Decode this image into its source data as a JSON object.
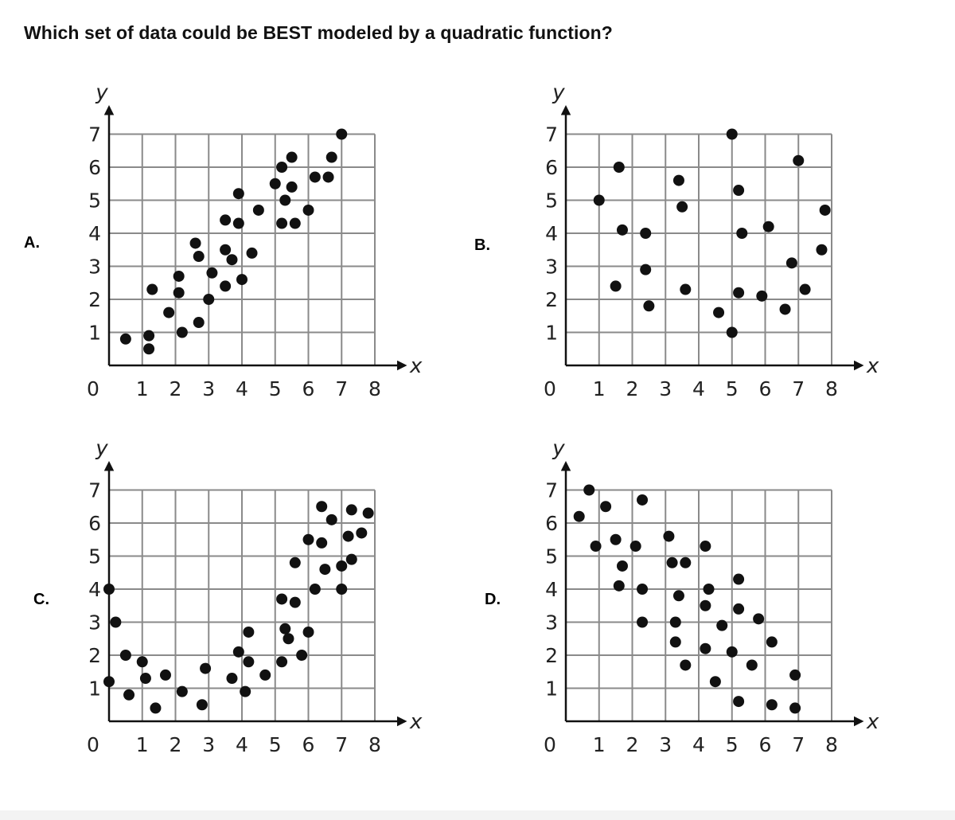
{
  "question": "Which set of data could be BEST modeled by a quadratic function?",
  "colors": {
    "point": "#111111",
    "grid": "#8a8a8a",
    "axis": "#111111"
  },
  "chart_data": [
    {
      "type": "scatter",
      "label": "A.",
      "xlabel": "x",
      "ylabel": "y",
      "xlim": [
        0,
        8
      ],
      "ylim": [
        0,
        7
      ],
      "grid": true,
      "xticks": [
        "0",
        "1",
        "2",
        "3",
        "4",
        "5",
        "6",
        "7",
        "8"
      ],
      "yticks": [
        "1",
        "2",
        "3",
        "4",
        "5",
        "6",
        "7"
      ],
      "points": [
        [
          0.5,
          0.8
        ],
        [
          1.2,
          0.9
        ],
        [
          1.2,
          0.5
        ],
        [
          1.3,
          2.3
        ],
        [
          1.8,
          1.6
        ],
        [
          2.1,
          2.7
        ],
        [
          2.1,
          2.2
        ],
        [
          2.2,
          1.0
        ],
        [
          2.6,
          3.7
        ],
        [
          2.7,
          3.3
        ],
        [
          2.7,
          1.3
        ],
        [
          3.0,
          2.0
        ],
        [
          3.1,
          2.8
        ],
        [
          3.5,
          4.4
        ],
        [
          3.5,
          3.5
        ],
        [
          3.5,
          2.4
        ],
        [
          3.7,
          3.2
        ],
        [
          3.9,
          5.2
        ],
        [
          3.9,
          4.3
        ],
        [
          4.0,
          2.6
        ],
        [
          4.3,
          3.4
        ],
        [
          4.5,
          4.7
        ],
        [
          5.0,
          5.5
        ],
        [
          5.2,
          6.0
        ],
        [
          5.2,
          4.3
        ],
        [
          5.3,
          5.0
        ],
        [
          5.5,
          6.3
        ],
        [
          5.5,
          5.4
        ],
        [
          5.6,
          4.3
        ],
        [
          6.0,
          4.7
        ],
        [
          6.2,
          5.7
        ],
        [
          6.6,
          5.7
        ],
        [
          6.7,
          6.3
        ],
        [
          7.0,
          7.0
        ]
      ]
    },
    {
      "type": "scatter",
      "label": "B.",
      "xlabel": "x",
      "ylabel": "y",
      "xlim": [
        0,
        8
      ],
      "ylim": [
        0,
        7
      ],
      "grid": true,
      "xticks": [
        "0",
        "1",
        "2",
        "3",
        "4",
        "5",
        "6",
        "7",
        "8"
      ],
      "yticks": [
        "1",
        "2",
        "3",
        "4",
        "5",
        "6",
        "7"
      ],
      "points": [
        [
          1.0,
          5.0
        ],
        [
          1.5,
          2.4
        ],
        [
          1.6,
          6.0
        ],
        [
          1.7,
          4.1
        ],
        [
          2.4,
          4.0
        ],
        [
          2.4,
          2.9
        ],
        [
          2.5,
          1.8
        ],
        [
          3.4,
          5.6
        ],
        [
          3.5,
          4.8
        ],
        [
          3.6,
          2.3
        ],
        [
          4.6,
          1.6
        ],
        [
          5.0,
          7.0
        ],
        [
          5.0,
          1.0
        ],
        [
          5.2,
          5.3
        ],
        [
          5.2,
          2.2
        ],
        [
          5.3,
          4.0
        ],
        [
          5.9,
          2.1
        ],
        [
          6.1,
          4.2
        ],
        [
          6.6,
          1.7
        ],
        [
          6.8,
          3.1
        ],
        [
          7.0,
          6.2
        ],
        [
          7.2,
          2.3
        ],
        [
          7.7,
          3.5
        ],
        [
          7.8,
          4.7
        ]
      ]
    },
    {
      "type": "scatter",
      "label": "C.",
      "xlabel": "x",
      "ylabel": "y",
      "xlim": [
        0,
        8
      ],
      "ylim": [
        0,
        7
      ],
      "grid": true,
      "xticks": [
        "0",
        "1",
        "2",
        "3",
        "4",
        "5",
        "6",
        "7",
        "8"
      ],
      "yticks": [
        "1",
        "2",
        "3",
        "4",
        "5",
        "6",
        "7"
      ],
      "points": [
        [
          0.0,
          4.0
        ],
        [
          0.0,
          1.2
        ],
        [
          0.2,
          3.0
        ],
        [
          0.5,
          2.0
        ],
        [
          0.6,
          0.8
        ],
        [
          1.0,
          1.8
        ],
        [
          1.1,
          1.3
        ],
        [
          1.4,
          0.4
        ],
        [
          1.7,
          1.4
        ],
        [
          2.2,
          0.9
        ],
        [
          2.8,
          0.5
        ],
        [
          2.9,
          1.6
        ],
        [
          3.7,
          1.3
        ],
        [
          3.9,
          2.1
        ],
        [
          4.1,
          0.9
        ],
        [
          4.2,
          2.7
        ],
        [
          4.2,
          1.8
        ],
        [
          4.7,
          1.4
        ],
        [
          5.2,
          3.7
        ],
        [
          5.2,
          1.8
        ],
        [
          5.3,
          2.8
        ],
        [
          5.4,
          2.5
        ],
        [
          5.6,
          4.8
        ],
        [
          5.6,
          3.6
        ],
        [
          5.8,
          2.0
        ],
        [
          6.0,
          5.5
        ],
        [
          6.0,
          2.7
        ],
        [
          6.2,
          4.0
        ],
        [
          6.4,
          6.5
        ],
        [
          6.4,
          5.4
        ],
        [
          6.5,
          4.6
        ],
        [
          6.7,
          6.1
        ],
        [
          7.0,
          4.7
        ],
        [
          7.0,
          4.0
        ],
        [
          7.2,
          5.6
        ],
        [
          7.3,
          6.4
        ],
        [
          7.3,
          4.9
        ],
        [
          7.6,
          5.7
        ],
        [
          7.8,
          6.3
        ]
      ]
    },
    {
      "type": "scatter",
      "label": "D.",
      "xlabel": "x",
      "ylabel": "y",
      "xlim": [
        0,
        8
      ],
      "ylim": [
        0,
        7
      ],
      "grid": true,
      "xticks": [
        "0",
        "1",
        "2",
        "3",
        "4",
        "5",
        "6",
        "7",
        "8"
      ],
      "yticks": [
        "1",
        "2",
        "3",
        "4",
        "5",
        "6",
        "7"
      ],
      "points": [
        [
          0.4,
          6.2
        ],
        [
          0.7,
          7.0
        ],
        [
          0.9,
          5.3
        ],
        [
          1.2,
          6.5
        ],
        [
          1.5,
          5.5
        ],
        [
          1.6,
          4.1
        ],
        [
          1.7,
          4.7
        ],
        [
          2.1,
          5.3
        ],
        [
          2.3,
          6.7
        ],
        [
          2.3,
          4.0
        ],
        [
          2.3,
          3.0
        ],
        [
          3.1,
          5.6
        ],
        [
          3.2,
          4.8
        ],
        [
          3.3,
          2.4
        ],
        [
          3.3,
          3.0
        ],
        [
          3.4,
          3.8
        ],
        [
          3.6,
          4.8
        ],
        [
          3.6,
          1.7
        ],
        [
          4.2,
          5.3
        ],
        [
          4.2,
          2.2
        ],
        [
          4.2,
          3.5
        ],
        [
          4.3,
          4.0
        ],
        [
          4.5,
          1.2
        ],
        [
          4.7,
          2.9
        ],
        [
          5.0,
          2.1
        ],
        [
          5.2,
          4.3
        ],
        [
          5.2,
          3.4
        ],
        [
          5.2,
          0.6
        ],
        [
          5.6,
          1.7
        ],
        [
          5.8,
          3.1
        ],
        [
          6.2,
          2.4
        ],
        [
          6.2,
          0.5
        ],
        [
          6.9,
          1.4
        ],
        [
          6.9,
          0.4
        ]
      ]
    }
  ]
}
